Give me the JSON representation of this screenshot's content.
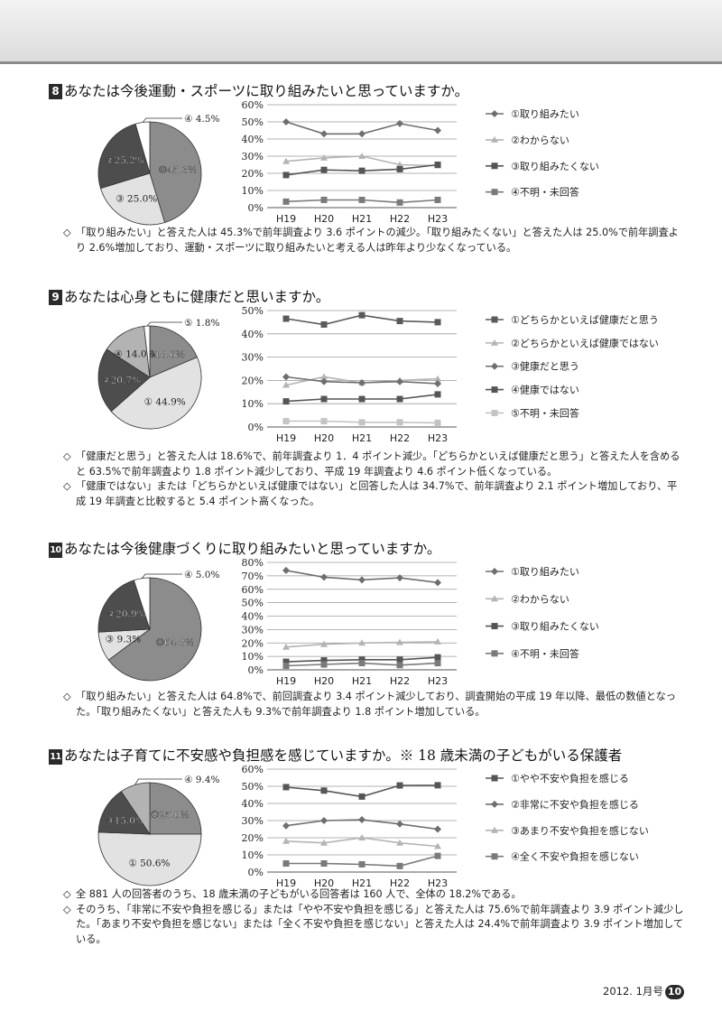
{
  "sections": [
    {
      "number": "8",
      "title": "あなたは今後運動・スポーツに取り組みたいと思っていますか。",
      "pie": {
        "slices": [
          {
            "label": "⑩45.3%",
            "value": 45.3,
            "color": "#8c8c8c"
          },
          {
            "label": "③ 25.0%",
            "value": 25.0,
            "color": "#e2e2e2"
          },
          {
            "label": "②25.2%",
            "value": 25.2,
            "color": "#4d4d4d"
          },
          {
            "label": "④ 4.5%",
            "value": 4.5,
            "color": "#ffffff"
          }
        ]
      },
      "chart_data": {
        "type": "line",
        "categories": [
          "H19",
          "H20",
          "H21",
          "H22",
          "H23"
        ],
        "y_ticks": [
          "0%",
          "10%",
          "20%",
          "30%",
          "40%",
          "50%",
          "60%"
        ],
        "ylim": [
          0,
          60
        ],
        "series": [
          {
            "name": "①取り組みたい",
            "values": [
              50,
              43,
              43,
              49,
              45
            ],
            "color": "#6e6e6e",
            "marker": "diamond"
          },
          {
            "name": "②わからない",
            "values": [
              27,
              29,
              30,
              25,
              24.5
            ],
            "color": "#b4b4b4",
            "marker": "triangle"
          },
          {
            "name": "③取り組みたくない",
            "values": [
              19,
              22,
              21.5,
              22.4,
              25
            ],
            "color": "#555555",
            "marker": "square"
          },
          {
            "name": "④不明・未回答",
            "values": [
              3.5,
              4.5,
              4.5,
              3,
              4.5
            ],
            "color": "#7a7a7a",
            "marker": "square"
          }
        ]
      },
      "notes": [
        {
          "mark": "◇",
          "text": "「取り組みたい」と答えた人は 45.3%で前年調査より 3.6 ポイントの減少。「取り組みたくない」と答えた人は 25.0%で前年調査より 2.6%増加しており、運動・スポーツに取り組みたいと考える人は昨年より少なくなっている。"
        }
      ]
    },
    {
      "number": "9",
      "title": "あなたは心身ともに健康だと思いますか。",
      "pie": {
        "slices": [
          {
            "label": "③18.6%",
            "value": 18.6,
            "color": "#8c8c8c"
          },
          {
            "label": "① 44.9%",
            "value": 44.9,
            "color": "#e2e2e2"
          },
          {
            "label": "②20.7%",
            "value": 20.7,
            "color": "#4d4d4d"
          },
          {
            "label": "④ 14.0%",
            "value": 14.0,
            "color": "#b3b3b3"
          },
          {
            "label": "⑤ 1.8%",
            "value": 1.8,
            "color": "#ffffff"
          }
        ]
      },
      "chart_data": {
        "type": "line",
        "categories": [
          "H19",
          "H20",
          "H21",
          "H22",
          "H23"
        ],
        "y_ticks": [
          "0%",
          "10%",
          "20%",
          "30%",
          "40%",
          "50%"
        ],
        "ylim": [
          0,
          50
        ],
        "series": [
          {
            "name": "①どちらかといえば健康だと思う",
            "values": [
              46.5,
              44,
              48,
              45.5,
              45
            ],
            "color": "#5a5a5a",
            "marker": "square"
          },
          {
            "name": "②どちらかといえば健康ではない",
            "values": [
              18,
              21.5,
              19,
              20,
              20.7
            ],
            "color": "#b4b4b4",
            "marker": "triangle"
          },
          {
            "name": "③健康だと思う",
            "values": [
              21.5,
              19.5,
              19,
              19.5,
              18.6
            ],
            "color": "#6e6e6e",
            "marker": "diamond"
          },
          {
            "name": "④健康ではない",
            "values": [
              11,
              12,
              12,
              12,
              14
            ],
            "color": "#555555",
            "marker": "square"
          },
          {
            "name": "⑤不明・未回答",
            "values": [
              2.5,
              2.5,
              2,
              2,
              1.8
            ],
            "color": "#c4c4c4",
            "marker": "square"
          }
        ]
      },
      "notes": [
        {
          "mark": "◇",
          "text": "「健康だと思う」と答えた人は 18.6%で、前年調査より 1．4 ポイント減少。「どちらかといえば健康だと思う」と答えた人を含めると 63.5%で前年調査より 1.8 ポイント減少しており、平成 19 年調査より 4.6 ポイント低くなっている。"
        },
        {
          "mark": "◇",
          "text": "「健康ではない」または「どちらかといえば健康ではない」と回答した人は 34.7%で、前年調査より 2.1 ポイント増加しており、平成 19 年調査と比較すると 5.4 ポイント高くなった。"
        }
      ]
    },
    {
      "number": "10",
      "title": "あなたは今後健康づくりに取り組みたいと思っていますか。",
      "pie": {
        "slices": [
          {
            "label": "⑩64.8%",
            "value": 64.8,
            "color": "#8c8c8c"
          },
          {
            "label": "③ 9.3%",
            "value": 9.3,
            "color": "#e2e2e2"
          },
          {
            "label": "②20.9%",
            "value": 20.9,
            "color": "#4d4d4d"
          },
          {
            "label": "④ 5.0%",
            "value": 5.0,
            "color": "#ffffff"
          }
        ]
      },
      "chart_data": {
        "type": "line",
        "categories": [
          "H19",
          "H20",
          "H21",
          "H22",
          "H23"
        ],
        "y_ticks": [
          "0%",
          "10%",
          "20%",
          "30%",
          "40%",
          "50%",
          "60%",
          "70%",
          "80%"
        ],
        "ylim": [
          0,
          80
        ],
        "series": [
          {
            "name": "①取り組みたい",
            "values": [
              74,
              69,
              67,
              68.5,
              65
            ],
            "color": "#6e6e6e",
            "marker": "diamond"
          },
          {
            "name": "②わからない",
            "values": [
              17,
              19,
              20,
              20.5,
              20.9
            ],
            "color": "#b4b4b4",
            "marker": "triangle"
          },
          {
            "name": "③取り組みたくない",
            "values": [
              6,
              7,
              7.5,
              7.5,
              9.3
            ],
            "color": "#555555",
            "marker": "square"
          },
          {
            "name": "④不明・未回答",
            "values": [
              3,
              4,
              5,
              3.5,
              5
            ],
            "color": "#7a7a7a",
            "marker": "square"
          }
        ]
      },
      "notes": [
        {
          "mark": "◇",
          "text": "「取り組みたい」と答えた人は 64.8%で、前回調査より 3.4 ポイント減少しており、調査開始の平成 19 年以降、最低の数値となった。「取り組みたくない」と答えた人も 9.3%で前年調査より 1.8 ポイント増加している。"
        }
      ]
    },
    {
      "number": "11",
      "title": "あなたは子育てに不安感や負担感を感じていますか。※ 18 歳未満の子どもがいる保護者",
      "pie": {
        "slices": [
          {
            "label": "②25.0%",
            "value": 25.0,
            "color": "#8c8c8c"
          },
          {
            "label": "① 50.6%",
            "value": 50.6,
            "color": "#e2e2e2"
          },
          {
            "label": "③15.0%",
            "value": 15.0,
            "color": "#4d4d4d"
          },
          {
            "label": "④ 9.4%",
            "value": 9.4,
            "color": "#b3b3b3"
          }
        ]
      },
      "chart_data": {
        "type": "line",
        "categories": [
          "H19",
          "H20",
          "H21",
          "H22",
          "H23"
        ],
        "y_ticks": [
          "0%",
          "10%",
          "20%",
          "30%",
          "40%",
          "50%",
          "60%"
        ],
        "ylim": [
          0,
          60
        ],
        "series": [
          {
            "name": "①やや不安や負担を感じる",
            "values": [
              49.5,
              47.5,
              44,
              50.5,
              50.6
            ],
            "color": "#555555",
            "marker": "square"
          },
          {
            "name": "②非常に不安や負担を感じる",
            "values": [
              27,
              30,
              30.5,
              28,
              25
            ],
            "color": "#6e6e6e",
            "marker": "diamond"
          },
          {
            "name": "③あまり不安や負担を感じない",
            "values": [
              18,
              17,
              20,
              17,
              15
            ],
            "color": "#b4b4b4",
            "marker": "triangle"
          },
          {
            "name": "④全く不安や負担を感じない",
            "values": [
              5,
              5,
              4.5,
              3.5,
              9.4
            ],
            "color": "#7a7a7a",
            "marker": "square"
          }
        ]
      },
      "notes": [
        {
          "mark": "◇",
          "text": "全 881 人の回答者のうち、18 歳未満の子どもがいる回答者は 160 人で、全体の 18.2%である。"
        },
        {
          "mark": "◇",
          "text": "そのうち、「非常に不安や負担を感じる」または「やや不安や負担を感じる」と答えた人は 75.6%で前年調査より 3.9 ポイント減少した。「あまり不安や負担を感じない」または「全く不安や負担を感じない」と答えた人は 24.4%で前年調査より 3.9 ポイント増加している。"
        }
      ]
    }
  ],
  "footer": {
    "issue": "2012. 1月号",
    "page": "10"
  }
}
